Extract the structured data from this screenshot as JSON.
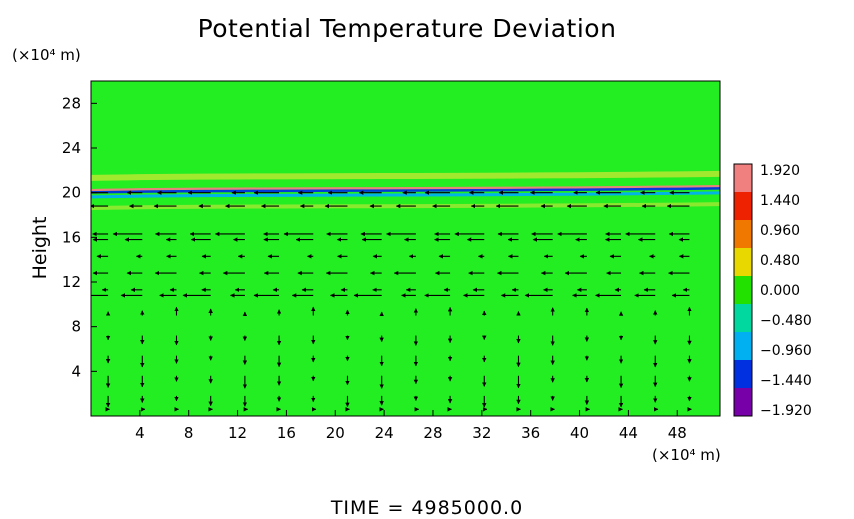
{
  "chart_data": {
    "type": "heatmap",
    "title": "Potential Temperature Deviation",
    "ylabel": "Height",
    "x_unit_label": "(×10⁴ m)",
    "y_unit_label": "(×10⁴ m)",
    "time_label": "TIME = 4985000.0",
    "xlim": [
      0,
      51.5
    ],
    "ylim": [
      0,
      30
    ],
    "xticks": [
      "4",
      "8",
      "12",
      "16",
      "20",
      "24",
      "28",
      "32",
      "36",
      "40",
      "44",
      "48"
    ],
    "xtick_values": [
      4,
      8,
      12,
      16,
      20,
      24,
      28,
      32,
      36,
      40,
      44,
      48
    ],
    "yticks": [
      "4",
      "8",
      "12",
      "16",
      "20",
      "24",
      "28"
    ],
    "ytick_values": [
      4,
      8,
      12,
      16,
      20,
      24,
      28
    ],
    "colorbar": {
      "labels": [
        "1.920",
        "1.440",
        "0.960",
        "0.480",
        "0.000",
        "−0.480",
        "−0.960",
        "−1.440",
        "−1.920"
      ],
      "values": [
        1.92,
        1.44,
        0.96,
        0.48,
        0.0,
        -0.48,
        -0.96,
        -1.44,
        -1.92
      ],
      "colors": [
        "#f08080",
        "#ee2200",
        "#f07800",
        "#e8d800",
        "#22e000",
        "#00d8a0",
        "#00b0f0",
        "#0030e0",
        "#7800a8"
      ]
    },
    "background_value": 0.0,
    "background_color": "#22ee22",
    "layers": [
      {
        "y": 21.5,
        "value": 0.5,
        "color": "#a8e830"
      },
      {
        "y": 20.4,
        "value": 1.9,
        "color": "#f08080"
      },
      {
        "y": 20.2,
        "value": -1.44,
        "color": "#0030e0"
      },
      {
        "y": 19.8,
        "value": -0.8,
        "color": "#00b0f0"
      },
      {
        "y": 18.8,
        "value": 0.2,
        "color": "#8ee830"
      }
    ],
    "wind_vectors": {
      "rows": [
        {
          "y": 20.0,
          "u": -1.8,
          "v": 0.0
        },
        {
          "y": 18.8,
          "u": -1.6,
          "v": 0.0
        },
        {
          "y": 16.3,
          "u": -2.2,
          "v": 0.0
        },
        {
          "y": 15.8,
          "u": -1.4,
          "v": 0.0
        },
        {
          "y": 14.3,
          "u": -0.8,
          "v": 0.0
        },
        {
          "y": 12.8,
          "u": -1.6,
          "v": 0.0
        },
        {
          "y": 11.3,
          "u": -0.8,
          "v": 0.0
        },
        {
          "y": 10.8,
          "u": -2.0,
          "v": 0.0
        },
        {
          "y": 9.0,
          "u": 0.0,
          "v": 0.6
        },
        {
          "y": 7.2,
          "u": 0.0,
          "v": -0.7
        },
        {
          "y": 5.4,
          "u": 0.0,
          "v": -0.8
        },
        {
          "y": 3.6,
          "u": 0.0,
          "v": -0.9
        },
        {
          "y": 1.8,
          "u": 0.0,
          "v": -0.8
        },
        {
          "y": 0.6,
          "u": 0.2,
          "v": 0.0
        }
      ]
    }
  }
}
